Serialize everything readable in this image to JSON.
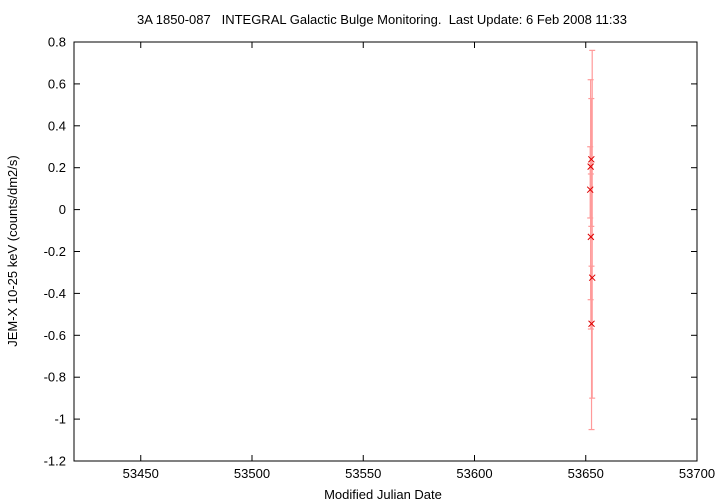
{
  "chart_data": {
    "type": "scatter",
    "title": "3A 1850-087   INTEGRAL Galactic Bulge Monitoring.  Last Update: 6 Feb 2008 11:33",
    "xlabel": "Modified Julian Date",
    "ylabel": "JEM-X 10-25 keV (counts/dm2/s)",
    "xlim": [
      53420,
      53700
    ],
    "ylim": [
      -1.2,
      0.8
    ],
    "xticks": [
      53450,
      53500,
      53550,
      53600,
      53650,
      53700
    ],
    "xtick_labels": [
      "53450",
      "53500",
      "53550",
      "53600",
      "53650",
      "53700"
    ],
    "yticks": [
      0.8,
      0.6,
      0.4,
      0.2,
      0,
      -0.2,
      -0.4,
      -0.6,
      -0.8,
      -1,
      -1.2
    ],
    "ytick_labels": [
      "0.8",
      "0.6",
      "0.4",
      "0.2",
      "0",
      "-0.2",
      "-0.4",
      "-0.6",
      "-0.8",
      "-1",
      "-1.2"
    ],
    "grid": false,
    "marker_color": "#dd0000",
    "errorbar_color": "#ff9a9a",
    "points": [
      {
        "x": 53652.2,
        "y": 0.205,
        "ylow": -0.43,
        "yhigh": 0.62
      },
      {
        "x": 53652.5,
        "y": 0.24,
        "ylow": -0.08,
        "yhigh": 0.53
      },
      {
        "x": 53652.0,
        "y": 0.095,
        "ylow": -0.04,
        "yhigh": 0.3
      },
      {
        "x": 53652.3,
        "y": -0.13,
        "ylow": -0.57,
        "yhigh": 0.17
      },
      {
        "x": 53652.9,
        "y": -0.325,
        "ylow": -0.9,
        "yhigh": 0.76
      },
      {
        "x": 53652.6,
        "y": -0.545,
        "ylow": -1.05,
        "yhigh": -0.27
      }
    ]
  }
}
